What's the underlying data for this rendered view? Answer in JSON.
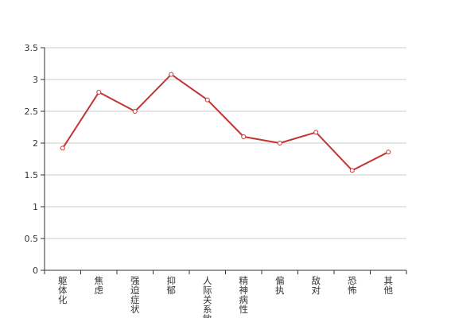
{
  "chart_data": {
    "type": "line",
    "title": "",
    "xlabel": "",
    "ylabel": "",
    "categories": [
      "躯体化",
      "焦虑",
      "强迫症状",
      "抑郁",
      "人际关系敏感",
      "精神病性",
      "偏执",
      "敌对",
      "恐怖",
      "其他"
    ],
    "series": [
      {
        "values": [
          1.92,
          2.8,
          2.5,
          3.08,
          2.68,
          2.1,
          2.0,
          2.17,
          1.57,
          1.86
        ]
      }
    ],
    "ylim": [
      0,
      3.5
    ],
    "yticks": [
      "0",
      "0.5",
      "1",
      "1.5",
      "2",
      "2.5",
      "3",
      "3.5"
    ],
    "grid": true,
    "legend": "none",
    "colors": {
      "line": "#c23531",
      "grid": "#cccccc",
      "axis": "#333333",
      "marker_fill": "#ffffff"
    }
  }
}
